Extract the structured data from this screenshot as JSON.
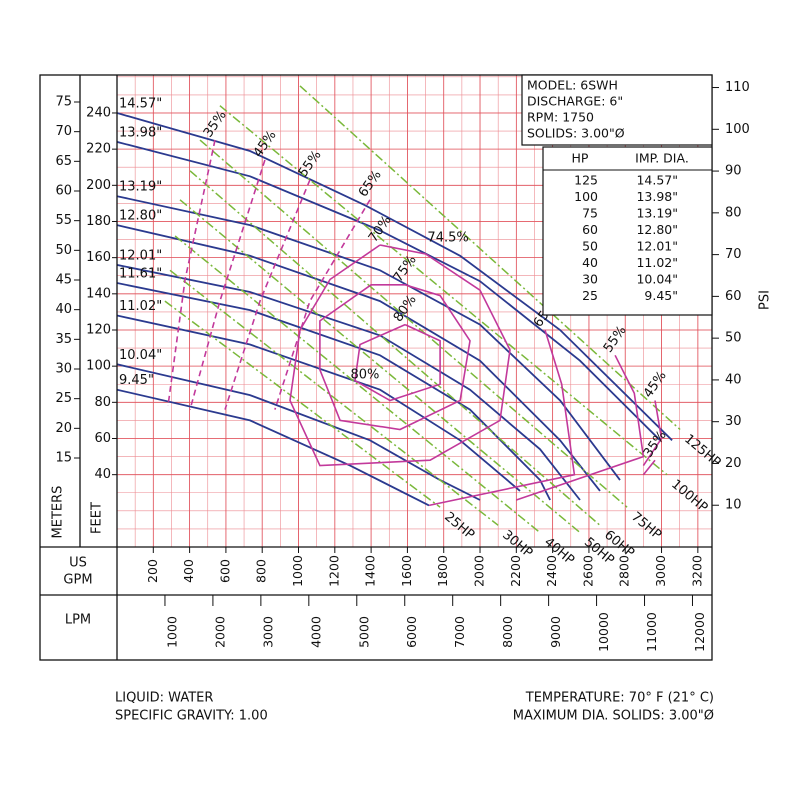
{
  "chart_data": {
    "type": "line",
    "x_label": [
      "US",
      "GPM"
    ],
    "y_label": "FEET",
    "xlim": [
      0,
      3278
    ],
    "xticks": [
      200,
      400,
      600,
      800,
      1000,
      1200,
      1400,
      1600,
      1800,
      2000,
      2200,
      2400,
      2600,
      2800,
      3000,
      3200
    ],
    "ylim": [
      0,
      261
    ],
    "yticks": [
      40,
      60,
      80,
      100,
      120,
      140,
      160,
      180,
      200,
      220,
      240
    ],
    "grid": true,
    "grid_color": "#e0505a",
    "meters_axis": {
      "label": "METERS",
      "lim": [
        0,
        79.55
      ],
      "ticks": [
        15,
        20,
        25,
        30,
        35,
        40,
        45,
        50,
        55,
        60,
        65,
        70,
        75
      ]
    },
    "psi_axis": {
      "label": "PSI",
      "lim": [
        0,
        113
      ],
      "ticks": [
        10,
        20,
        30,
        40,
        50,
        60,
        70,
        80,
        90,
        100,
        110
      ]
    },
    "lpm_axis": {
      "label": "LPM",
      "lim": [
        0,
        12407
      ],
      "ticks": [
        1000,
        2000,
        3000,
        4000,
        5000,
        6000,
        7000,
        8000,
        9000,
        10000,
        11000,
        12000
      ]
    },
    "series": [
      {
        "name": "14.57\"",
        "color": "#2b3a8f",
        "x": [
          0,
          733,
          1366,
          1890,
          2441,
          3058
        ],
        "values": [
          240,
          219,
          189,
          161,
          120,
          59
        ]
      },
      {
        "name": "13.98\"",
        "color": "#2b3a8f",
        "x": [
          0,
          733,
          1449,
          2000,
          2551,
          2992
        ],
        "values": [
          224,
          205,
          175,
          147,
          103,
          59
        ]
      },
      {
        "name": "13.19\"",
        "color": "#2b3a8f",
        "x": [
          0,
          733,
          1449,
          2000,
          2441,
          2771
        ],
        "values": [
          194,
          178,
          153,
          123,
          81,
          37
        ]
      },
      {
        "name": "12.80\"",
        "color": "#2b3a8f",
        "x": [
          0,
          733,
          1449,
          2000,
          2441,
          2661
        ],
        "values": [
          178,
          161,
          136,
          103,
          59,
          31
        ]
      },
      {
        "name": "12.01\"",
        "color": "#2b3a8f",
        "x": [
          0,
          733,
          1449,
          1945,
          2331,
          2551
        ],
        "values": [
          156,
          141,
          117,
          87,
          54,
          26
        ]
      },
      {
        "name": "11.61\"",
        "color": "#2b3a8f",
        "x": [
          0,
          733,
          1449,
          1945,
          2331,
          2386
        ],
        "values": [
          146,
          131,
          106,
          76,
          37,
          26
        ]
      },
      {
        "name": "11.02\"",
        "color": "#2b3a8f",
        "x": [
          0,
          733,
          1449,
          1890,
          2220
        ],
        "values": [
          128,
          112,
          87,
          59,
          31
        ]
      },
      {
        "name": "10.04\"",
        "color": "#2b3a8f",
        "x": [
          0,
          733,
          1394,
          1780,
          2000
        ],
        "values": [
          101,
          84,
          59,
          37,
          26
        ]
      },
      {
        "name": "9.45\"",
        "color": "#2b3a8f",
        "x": [
          0,
          733,
          1284,
          1719
        ],
        "values": [
          87,
          70,
          45,
          23
        ]
      }
    ],
    "efficiency_series": [
      {
        "name": "35%",
        "color": "#c2399b",
        "dashed": true,
        "x": [
          540,
          375,
          281
        ],
        "values": [
          225,
          148,
          78
        ]
      },
      {
        "name": "45%",
        "color": "#c2399b",
        "dashed": true,
        "x": [
          815,
          567,
          402
        ],
        "values": [
          214,
          136,
          76
        ]
      },
      {
        "name": "55%",
        "color": "#c2399b",
        "dashed": true,
        "x": [
          1063,
          788,
          595
        ],
        "values": [
          203,
          136,
          76
        ]
      },
      {
        "name": "65%",
        "color": "#c2399b",
        "dashed": true,
        "x": [
          1394,
          1063,
          870
        ],
        "values": [
          192,
          136,
          76
        ]
      },
      {
        "name": "70%",
        "color": "#c2399b",
        "dashed": false,
        "x": [
          1449,
          1700,
          2000,
          2165,
          2110,
          1725,
          1118,
          953,
          1008,
          1174,
          1449
        ],
        "values": [
          167,
          162,
          142,
          109,
          70,
          48,
          45,
          81,
          120,
          148,
          167
        ]
      },
      {
        "name": "75%",
        "color": "#c2399b",
        "dashed": false,
        "x": [
          1587,
          1780,
          1945,
          1890,
          1559,
          1229,
          1118,
          1118,
          1400,
          1587
        ],
        "values": [
          145,
          139,
          114,
          81,
          65,
          70,
          98,
          125,
          145,
          145
        ]
      },
      {
        "name": "80%",
        "color": "#c2399b",
        "dashed": false,
        "x": [
          1587,
          1780,
          1780,
          1504,
          1311,
          1339,
          1587
        ],
        "values": [
          123,
          114,
          90,
          81,
          92,
          112,
          123
        ]
      },
      {
        "name": "65%",
        "color": "#c2399b",
        "dashed": false,
        "x": [
          2358,
          2450,
          2520,
          1719
        ],
        "values": [
          120,
          90,
          40,
          23
        ]
      },
      {
        "name": "55%",
        "color": "#c2399b",
        "dashed": false,
        "x": [
          2744,
          2850,
          2900,
          2200
        ],
        "values": [
          106,
          85,
          50,
          26
        ]
      },
      {
        "name": "45%",
        "color": "#c2399b",
        "dashed": false,
        "x": [
          2964,
          3000,
          2900
        ],
        "values": [
          81,
          60,
          45
        ]
      },
      {
        "name": "35%",
        "color": "#c2399b",
        "dashed": false,
        "x": [
          2964,
          2900
        ],
        "values": [
          48,
          40
        ]
      }
    ],
    "hp_series": [
      {
        "name": "125HP",
        "color": "#7ab83a",
        "x": [
          1008,
          3102
        ],
        "values": [
          255,
          65
        ]
      },
      {
        "name": "100HP",
        "color": "#7ab83a",
        "x": [
          567,
          3030
        ],
        "values": [
          244,
          40
        ]
      },
      {
        "name": "75HP",
        "color": "#7ab83a",
        "x": [
          457,
          2810
        ],
        "values": [
          225,
          22
        ]
      },
      {
        "name": "60HP",
        "color": "#7ab83a",
        "x": [
          402,
          2661
        ],
        "values": [
          208,
          12
        ]
      },
      {
        "name": "50HP",
        "color": "#7ab83a",
        "x": [
          347,
          2550
        ],
        "values": [
          192,
          8
        ]
      },
      {
        "name": "40HP",
        "color": "#7ab83a",
        "x": [
          320,
          2330
        ],
        "values": [
          172,
          8
        ]
      },
      {
        "name": "30HP",
        "color": "#7ab83a",
        "x": [
          292,
          2100
        ],
        "values": [
          153,
          12
        ]
      },
      {
        "name": "25HP",
        "color": "#7ab83a",
        "x": [
          264,
          1780
        ],
        "values": [
          136,
          22
        ]
      }
    ],
    "annotations": [
      {
        "text": "74.5%",
        "x": 1824,
        "y": 171
      },
      {
        "text": "80%",
        "x": 1366,
        "y": 95
      }
    ]
  },
  "model_box": [
    "MODEL: 6SWH",
    "DISCHARGE: 6\"",
    "RPM: 1750",
    "SOLIDS: 3.00\"Ø"
  ],
  "impeller_table": {
    "header": [
      "HP",
      "IMP. DIA."
    ],
    "rows": [
      [
        "125",
        "14.57\""
      ],
      [
        "100",
        "13.98\""
      ],
      [
        "75",
        "13.19\""
      ],
      [
        "60",
        "12.80\""
      ],
      [
        "50",
        "12.01\""
      ],
      [
        "40",
        "11.02\""
      ],
      [
        "30",
        "10.04\""
      ],
      [
        "25",
        "9.45\""
      ]
    ]
  },
  "footer": {
    "left": [
      "LIQUID: WATER",
      "SPECIFIC GRAVITY: 1.00"
    ],
    "right": [
      "TEMPERATURE: 70° F (21° C)",
      "MAXIMUM DIA. SOLIDS: 3.00\"Ø"
    ]
  }
}
